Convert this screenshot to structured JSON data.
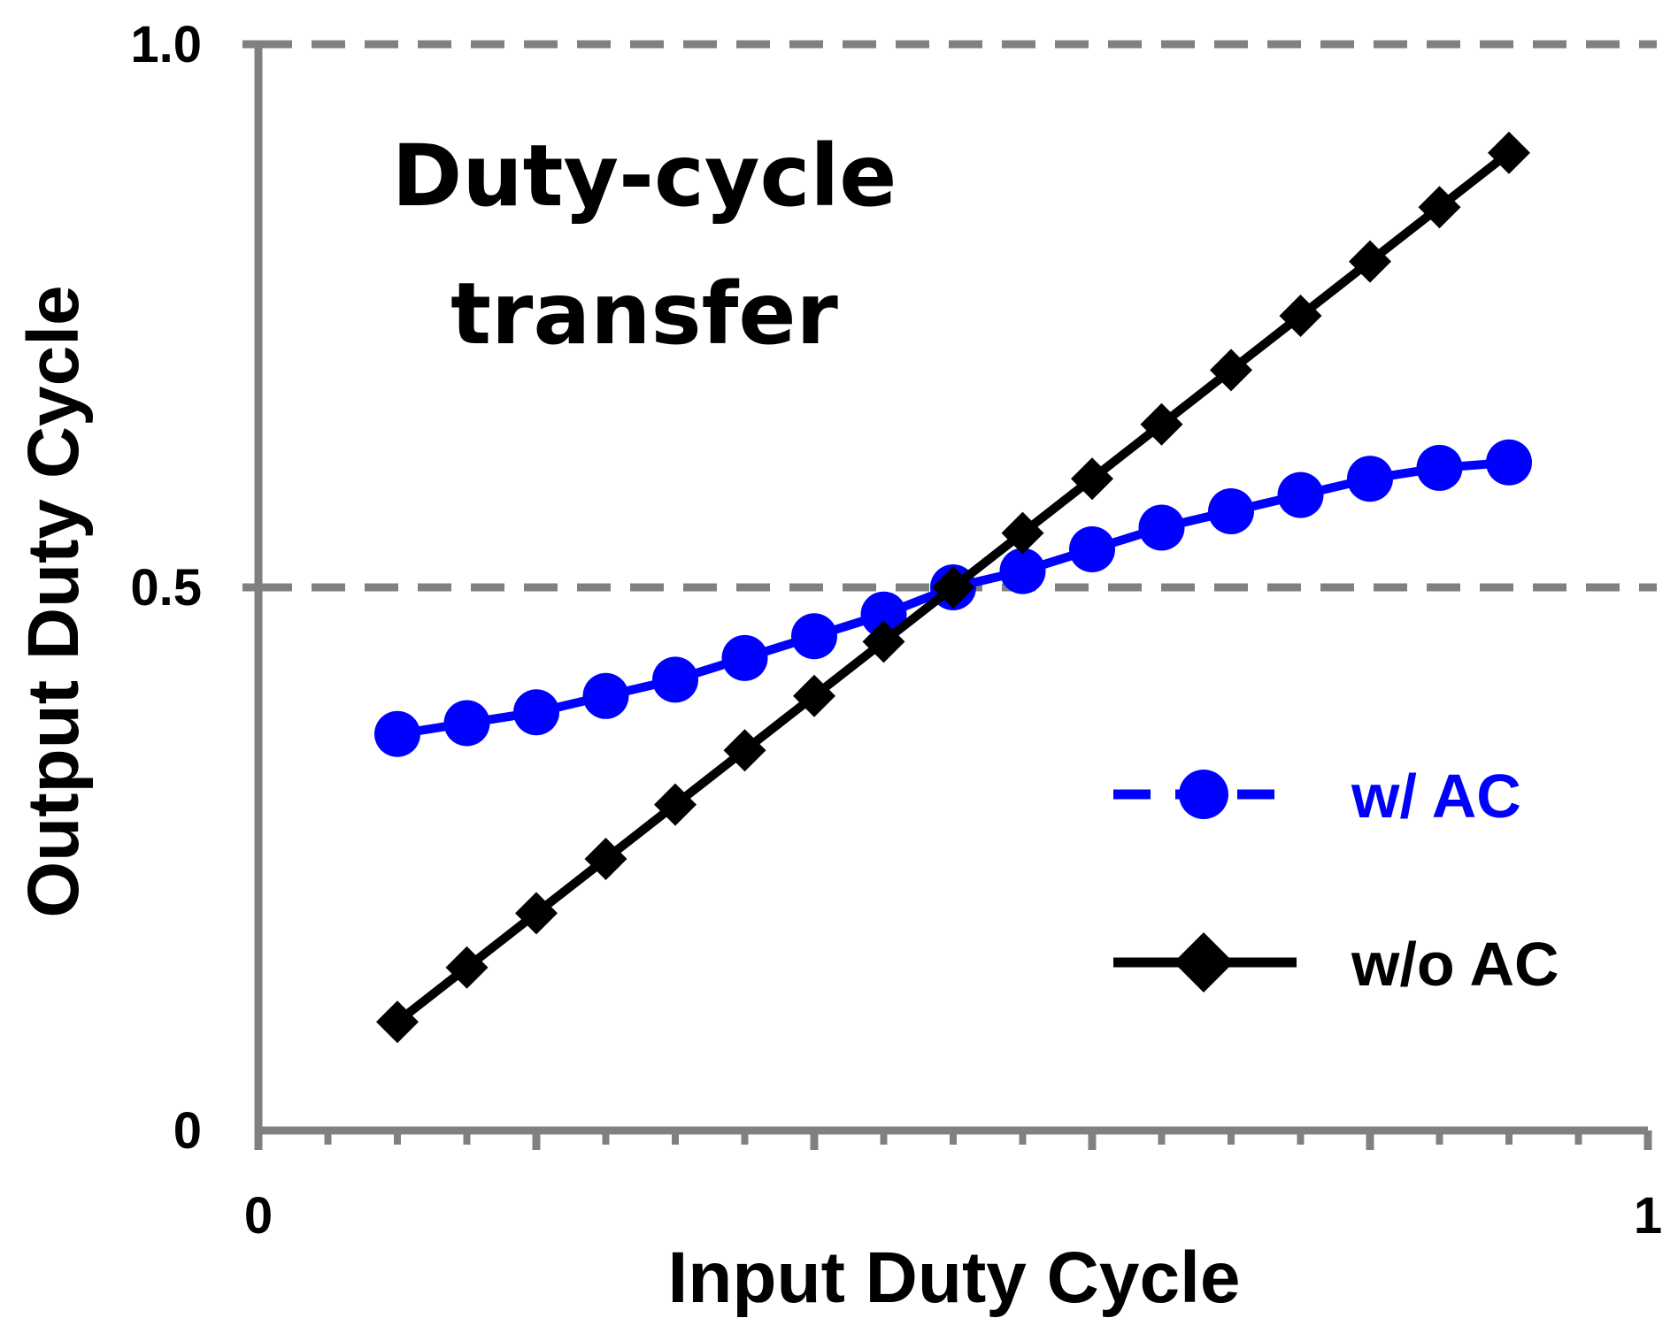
{
  "chart_data": {
    "type": "line",
    "title": [
      "Duty-cycle",
      "transfer"
    ],
    "xlabel": "Input Duty Cycle",
    "ylabel": "Output Duty Cycle",
    "xlim": [
      0,
      1
    ],
    "ylim": [
      0,
      1.0
    ],
    "xticks": [
      "0",
      "1"
    ],
    "yticks": [
      "0",
      "0.5",
      "1.0"
    ],
    "grid": "horizontal dashed at 0.5 and 1.0",
    "legend_position": "right",
    "x": [
      0.1,
      0.15,
      0.2,
      0.25,
      0.3,
      0.35,
      0.4,
      0.45,
      0.5,
      0.55,
      0.6,
      0.65,
      0.7,
      0.75,
      0.8,
      0.85,
      0.9
    ],
    "series": [
      {
        "name": "w/ AC",
        "color": "#0000ff",
        "marker": "circle",
        "values": [
          0.365,
          0.375,
          0.385,
          0.4,
          0.415,
          0.435,
          0.455,
          0.475,
          0.5,
          0.515,
          0.535,
          0.555,
          0.57,
          0.585,
          0.6,
          0.61,
          0.615
        ]
      },
      {
        "name": "w/o AC",
        "color": "#000000",
        "marker": "diamond",
        "values": [
          0.1,
          0.15,
          0.2,
          0.25,
          0.3,
          0.35,
          0.4,
          0.45,
          0.5,
          0.55,
          0.6,
          0.65,
          0.7,
          0.75,
          0.8,
          0.85,
          0.9
        ]
      }
    ]
  }
}
